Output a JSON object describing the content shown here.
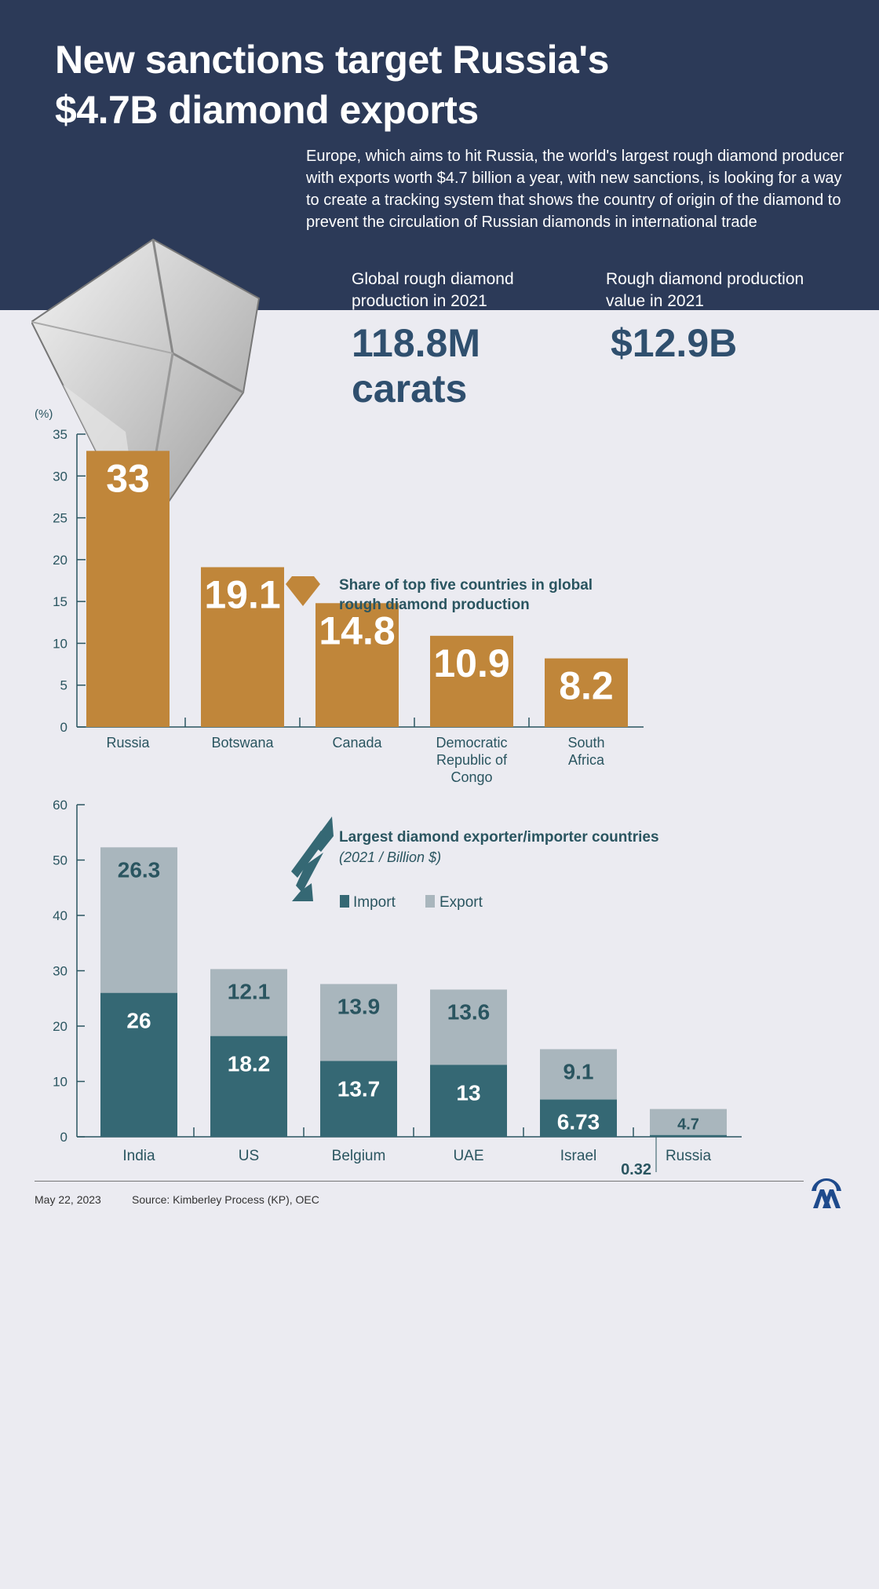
{
  "header": {
    "title_line1": "New sanctions target Russia's",
    "title_line2": "$4.7B diamond exports",
    "description": "Europe, which aims to hit Russia, the world's largest rough diamond producer with exports worth $4.7 billion a year, with new sanctions, is looking for a way to create a tracking system that shows the country of origin of the diamond to prevent the circulation of Russian diamonds in international trade"
  },
  "stats": [
    {
      "label": "Global rough diamond production in 2021",
      "value_line1": "118.8M",
      "value_line2": "carats"
    },
    {
      "label": "Rough diamond production value in 2021",
      "value_line1": "$12.9B",
      "value_line2": ""
    }
  ],
  "colors": {
    "navy": "#2c3a58",
    "gold": "#c0863a",
    "import": "#356874",
    "export": "#a9b6bd",
    "text": "#2a5560"
  },
  "chart_data": [
    {
      "type": "bar",
      "title": "Share of top five countries in global rough diamond production",
      "title_line1": "Share of top five countries in global",
      "title_line2": "rough diamond production",
      "ylabel": "(%)",
      "ylim": [
        0,
        35
      ],
      "yticks": [
        0,
        5,
        10,
        15,
        20,
        25,
        30,
        35
      ],
      "categories": [
        "Russia",
        "Botswana",
        "Canada",
        "Democratic Republic of Congo",
        "South Africa"
      ],
      "category_lines": [
        [
          "Russia"
        ],
        [
          "Botswana"
        ],
        [
          "Canada"
        ],
        [
          "Democratic",
          "Republic of",
          "Congo"
        ],
        [
          "South",
          "Africa"
        ]
      ],
      "values": [
        33,
        19.1,
        14.8,
        10.9,
        8.2
      ],
      "value_labels": [
        "33",
        "19.1",
        "14.8",
        "10.9",
        "8.2"
      ]
    },
    {
      "type": "bar",
      "stacked": true,
      "title": "Largest diamond exporter/importer countries",
      "subtitle": "(2021 / Billion $)",
      "ylim": [
        0,
        60
      ],
      "yticks": [
        0,
        10,
        20,
        30,
        40,
        50,
        60
      ],
      "categories": [
        "India",
        "US",
        "Belgium",
        "UAE",
        "Israel",
        "Russia"
      ],
      "legend": [
        "Import",
        "Export"
      ],
      "series": [
        {
          "name": "Import",
          "values": [
            26,
            18.2,
            13.7,
            13,
            6.73,
            0.32
          ],
          "labels": [
            "26",
            "18.2",
            "13.7",
            "13",
            "6.73",
            "0.32"
          ]
        },
        {
          "name": "Export",
          "values": [
            26.3,
            12.1,
            13.9,
            13.6,
            9.1,
            4.7
          ],
          "labels": [
            "26.3",
            "12.1",
            "13.9",
            "13.6",
            "9.1",
            "4.7"
          ]
        }
      ]
    }
  ],
  "footer": {
    "date": "May 22, 2023",
    "source": "Source: Kimberley Process (KP), OEC",
    "logo": "AA"
  }
}
